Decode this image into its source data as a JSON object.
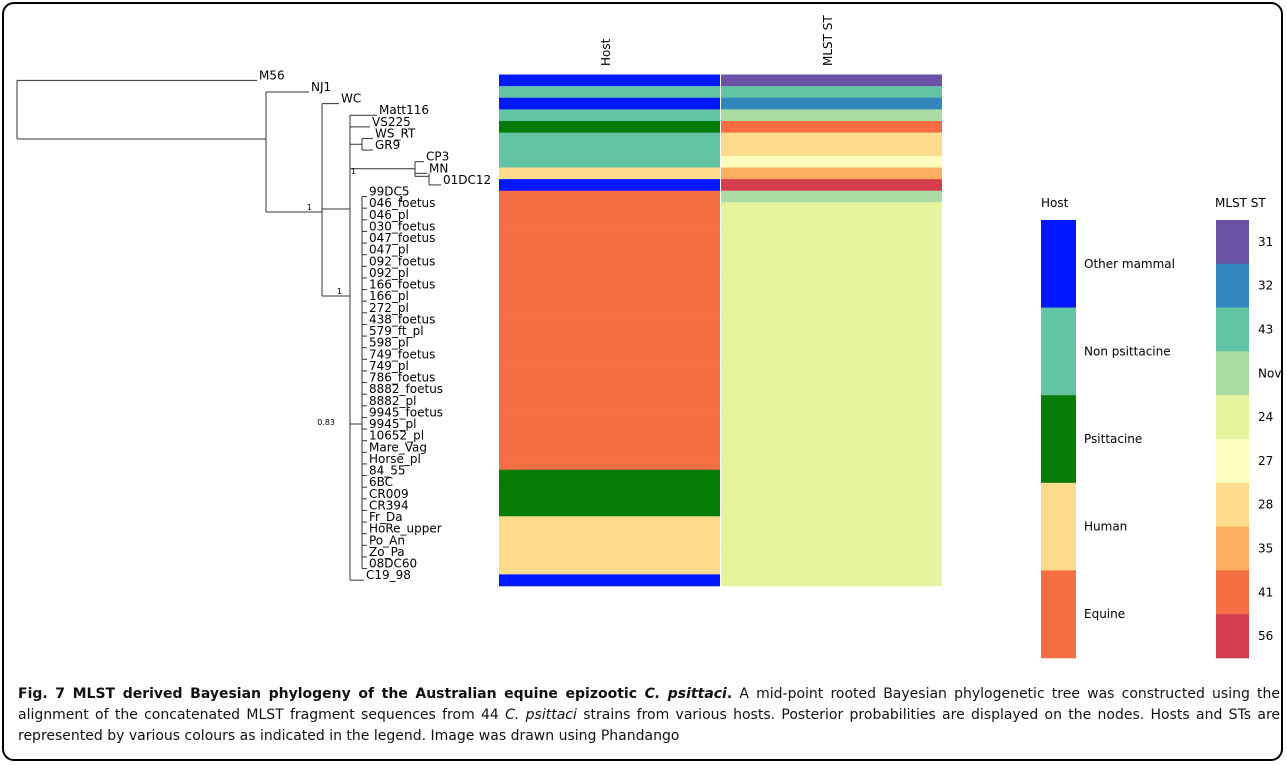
{
  "figure": {
    "heatmap_headers": [
      "Host",
      "MLST ST"
    ],
    "host_colors": {
      "Other mammal": "#0018ff",
      "Non psittacine": "#63c3a5",
      "Psittacine": "#057c05",
      "Human": "#fddb8c",
      "Equine": "#f46d43"
    },
    "st_colors": {
      "31": "#6a53a6",
      "32": "#3287bd",
      "43": "#63c3a5",
      "Novel": "#aadca4",
      "24": "#e6f59d",
      "27": "#fffebf",
      "28": "#fddb8c",
      "35": "#fcaf60",
      "41": "#f46d43",
      "56": "#d53e4f"
    },
    "host_legend": {
      "title": "Host",
      "items": [
        "Other mammal",
        "Non psittacine",
        "Psittacine",
        "Human",
        "Equine"
      ]
    },
    "st_legend": {
      "title": "MLST ST",
      "items": [
        "31",
        "32",
        "43",
        "Nove",
        "24",
        "27",
        "28",
        "35",
        "41",
        "56"
      ],
      "keys": [
        "31",
        "32",
        "43",
        "Novel",
        "24",
        "27",
        "28",
        "35",
        "41",
        "56"
      ]
    },
    "tips": [
      {
        "label": "M56",
        "host": "Other mammal",
        "st": "31"
      },
      {
        "label": "NJ1",
        "host": "Non psittacine",
        "st": "43"
      },
      {
        "label": "WC",
        "host": "Other mammal",
        "st": "32"
      },
      {
        "label": "Matt116",
        "host": "Non psittacine",
        "st": "Novel"
      },
      {
        "label": "VS225",
        "host": "Psittacine",
        "st": "41"
      },
      {
        "label": "WS_RT",
        "host": "Non psittacine",
        "st": "28"
      },
      {
        "label": "GR9",
        "host": "Non psittacine",
        "st": "28"
      },
      {
        "label": "CP3",
        "host": "Non psittacine",
        "st": "27"
      },
      {
        "label": "MN",
        "host": "Human",
        "st": "35"
      },
      {
        "label": "01DC12",
        "host": "Other mammal",
        "st": "56"
      },
      {
        "label": "99DC5",
        "host": "Equine",
        "st": "Novel"
      },
      {
        "label": "046_foetus",
        "host": "Equine",
        "st": "24"
      },
      {
        "label": "046_pl",
        "host": "Equine",
        "st": "24"
      },
      {
        "label": "030_foetus",
        "host": "Equine",
        "st": "24"
      },
      {
        "label": "047_foetus",
        "host": "Equine",
        "st": "24"
      },
      {
        "label": "047_pl",
        "host": "Equine",
        "st": "24"
      },
      {
        "label": "092_foetus",
        "host": "Equine",
        "st": "24"
      },
      {
        "label": "092_pl",
        "host": "Equine",
        "st": "24"
      },
      {
        "label": "166_foetus",
        "host": "Equine",
        "st": "24"
      },
      {
        "label": "166_pl",
        "host": "Equine",
        "st": "24"
      },
      {
        "label": "272_pl",
        "host": "Equine",
        "st": "24"
      },
      {
        "label": "438_foetus",
        "host": "Equine",
        "st": "24"
      },
      {
        "label": "579_ft_pl",
        "host": "Equine",
        "st": "24"
      },
      {
        "label": "598_pl",
        "host": "Equine",
        "st": "24"
      },
      {
        "label": "749_foetus",
        "host": "Equine",
        "st": "24"
      },
      {
        "label": "749_pl",
        "host": "Equine",
        "st": "24"
      },
      {
        "label": "786_foetus",
        "host": "Equine",
        "st": "24"
      },
      {
        "label": "8882_foetus",
        "host": "Equine",
        "st": "24"
      },
      {
        "label": "8882_pl",
        "host": "Equine",
        "st": "24"
      },
      {
        "label": "9945_foetus",
        "host": "Equine",
        "st": "24"
      },
      {
        "label": "9945_pl",
        "host": "Equine",
        "st": "24"
      },
      {
        "label": "10652_pl",
        "host": "Equine",
        "st": "24"
      },
      {
        "label": "Mare_Vag",
        "host": "Equine",
        "st": "24"
      },
      {
        "label": "Horse_pl",
        "host": "Equine",
        "st": "24"
      },
      {
        "label": "84_55",
        "host": "Psittacine",
        "st": "24"
      },
      {
        "label": "6BC",
        "host": "Psittacine",
        "st": "24"
      },
      {
        "label": "CR009",
        "host": "Psittacine",
        "st": "24"
      },
      {
        "label": "CR394",
        "host": "Psittacine",
        "st": "24"
      },
      {
        "label": "Fr_Da",
        "host": "Human",
        "st": "24"
      },
      {
        "label": "HoRe_upper",
        "host": "Human",
        "st": "24"
      },
      {
        "label": "Po_An",
        "host": "Human",
        "st": "24"
      },
      {
        "label": "Zo_Pa",
        "host": "Human",
        "st": "24"
      },
      {
        "label": "08DC60",
        "host": "Human",
        "st": "24"
      },
      {
        "label": "C19_98",
        "host": "Other mammal",
        "st": "24"
      }
    ],
    "node_labels": [
      {
        "id": "n1",
        "value": "1"
      },
      {
        "id": "n2",
        "value": "1"
      },
      {
        "id": "n3",
        "value": "1"
      },
      {
        "id": "n4",
        "value": "1"
      },
      {
        "id": "n5",
        "value": "0.83"
      }
    ]
  },
  "caption": {
    "lead": "Fig. 7 MLST derived Bayesian phylogeny of the Australian equine epizootic ",
    "lead_italic": "C. psittaci",
    "lead_end": ".",
    "text_1": " A mid-point rooted Bayesian phylogenetic tree was constructed using the alignment of the concatenated MLST fragment sequences from 44 ",
    "text_italic": "C. psittaci",
    "text_2": " strains from various hosts. Posterior probabilities are displayed on the nodes. Hosts and STs are represented by various colours as indicated in the legend. Image was drawn using Phandango"
  }
}
